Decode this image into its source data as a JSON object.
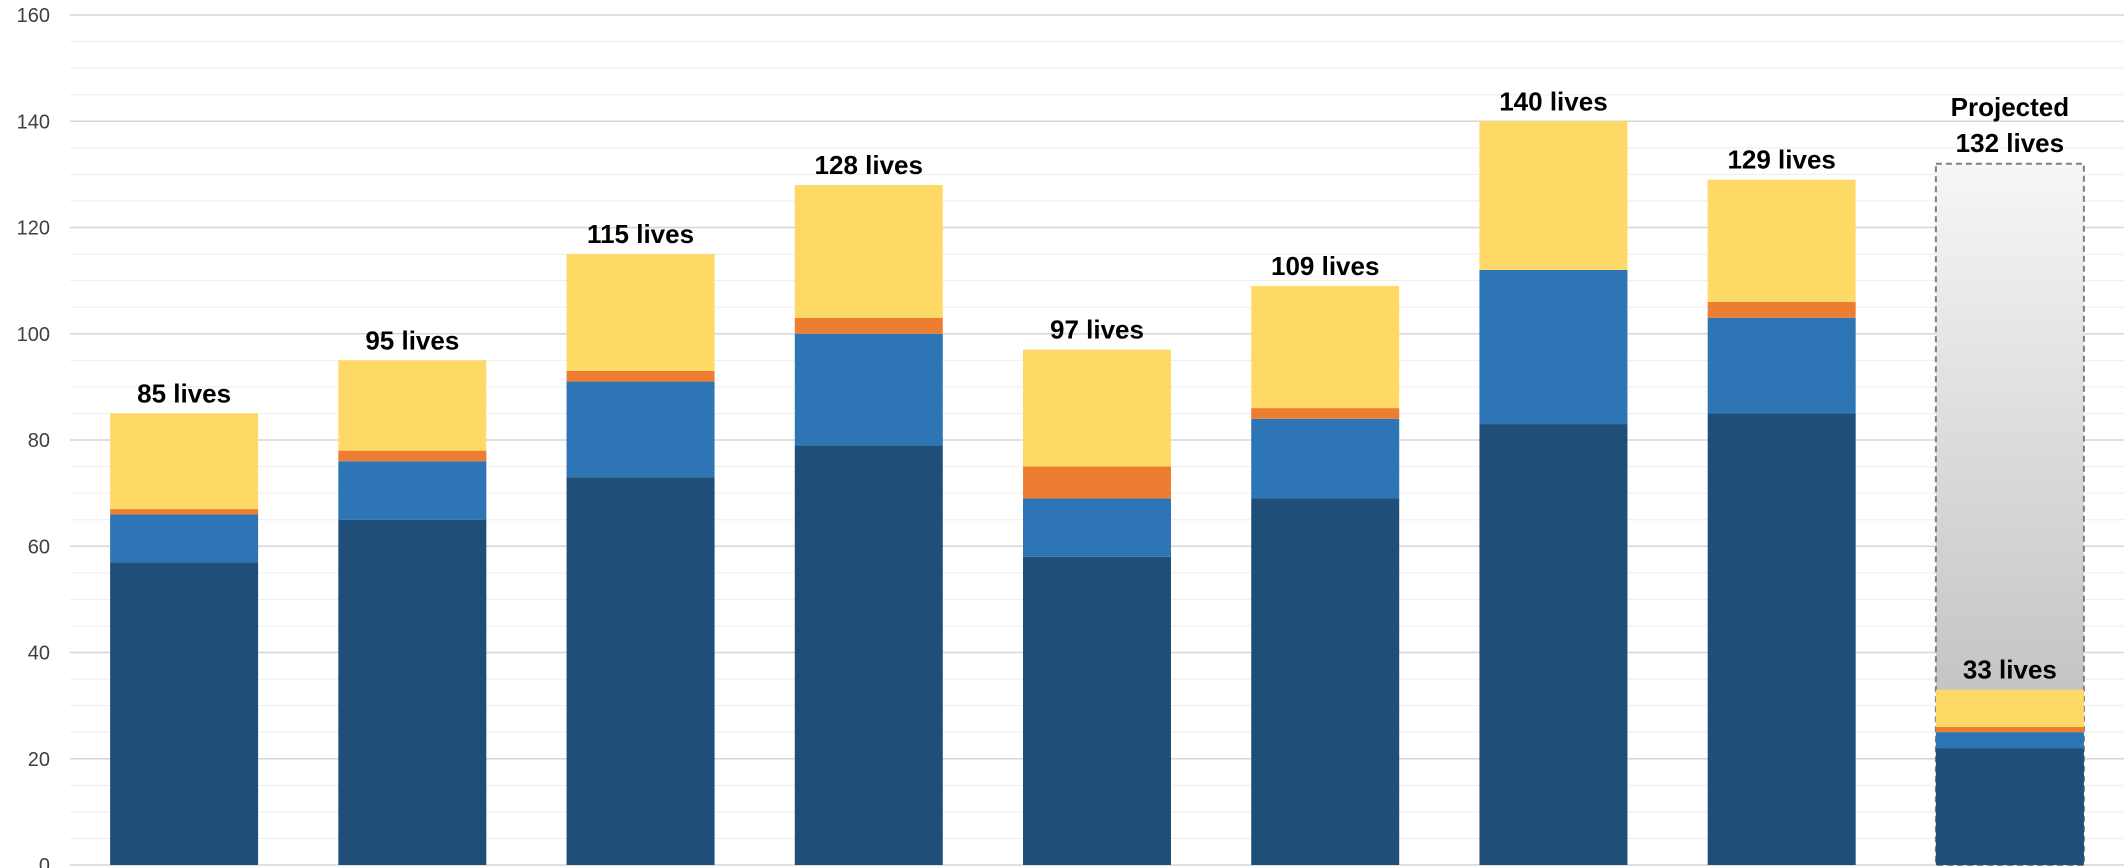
{
  "chart_data": {
    "type": "bar",
    "stacked": true,
    "ylim": [
      0,
      160
    ],
    "y_ticks": [
      "0",
      "20",
      "40",
      "60",
      "80",
      "100",
      "120",
      "140",
      "160"
    ],
    "y_tick_values": [
      0,
      20,
      40,
      60,
      80,
      100,
      120,
      140,
      160
    ],
    "grid": "horizontal major and minor",
    "colors": [
      "#1f4e79",
      "#2e75b6",
      "#ed7d31",
      "#ffd966"
    ],
    "bar_values": [
      [
        57,
        9,
        1,
        18
      ],
      [
        65,
        11,
        2,
        17
      ],
      [
        73,
        18,
        2,
        22
      ],
      [
        79,
        21,
        3,
        25
      ],
      [
        58,
        11,
        6,
        22
      ],
      [
        69,
        15,
        2,
        23
      ],
      [
        83,
        29,
        0,
        28
      ],
      [
        85,
        18,
        3,
        23
      ],
      [
        22,
        3,
        1,
        7
      ]
    ],
    "total_labels": [
      "85 lives",
      "95 lives",
      "115 lives",
      "128 lives",
      "97 lives",
      "109 lives",
      "140 lives",
      "129 lives",
      "33 lives"
    ],
    "projection": {
      "bar_index": 8,
      "value": 132,
      "label_line1": "Projected",
      "label_line2": "132 lives"
    }
  }
}
